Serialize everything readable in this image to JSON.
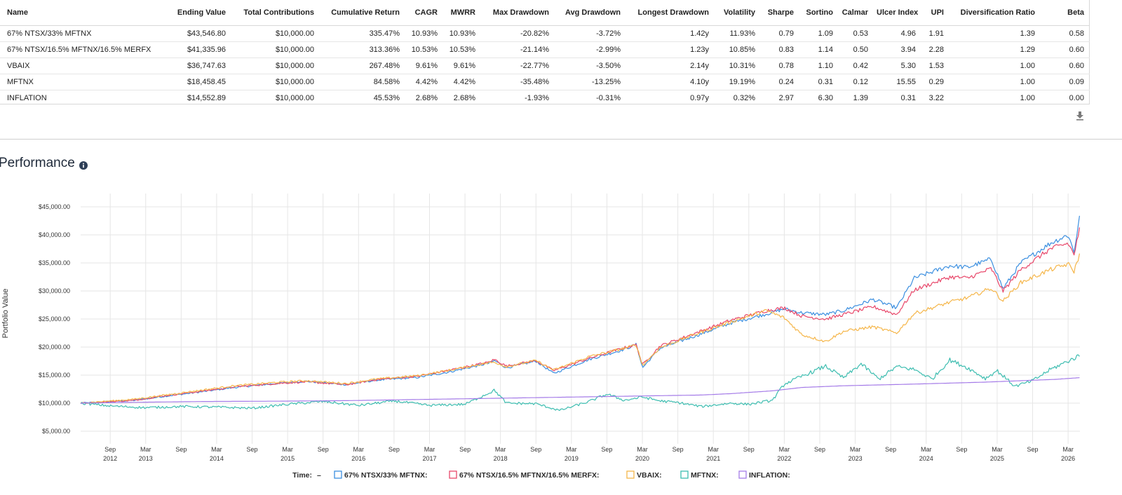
{
  "metrics": {
    "columns": [
      "Name",
      "Ending Value",
      "Total Contributions",
      "Cumulative Return",
      "CAGR",
      "MWRR",
      "Max Drawdown",
      "Avg Drawdown",
      "Longest Drawdown",
      "Volatility",
      "Sharpe",
      "Sortino",
      "Calmar",
      "Ulcer Index",
      "UPI",
      "Diversification Ratio",
      "Beta"
    ],
    "rows": [
      [
        "67% NTSX/33% MFTNX",
        "$43,546.80",
        "$10,000.00",
        "335.47%",
        "10.93%",
        "10.93%",
        "-20.82%",
        "-3.72%",
        "1.42y",
        "11.93%",
        "0.79",
        "1.09",
        "0.53",
        "4.96",
        "1.91",
        "1.39",
        "0.58"
      ],
      [
        "67% NTSX/16.5% MFTNX/16.5% MERFX",
        "$41,335.96",
        "$10,000.00",
        "313.36%",
        "10.53%",
        "10.53%",
        "-21.14%",
        "-2.99%",
        "1.23y",
        "10.85%",
        "0.83",
        "1.14",
        "0.50",
        "3.94",
        "2.28",
        "1.29",
        "0.60"
      ],
      [
        "VBAIX",
        "$36,747.63",
        "$10,000.00",
        "267.48%",
        "9.61%",
        "9.61%",
        "-22.77%",
        "-3.50%",
        "2.14y",
        "10.31%",
        "0.78",
        "1.10",
        "0.42",
        "5.30",
        "1.53",
        "1.00",
        "0.60"
      ],
      [
        "MFTNX",
        "$18,458.45",
        "$10,000.00",
        "84.58%",
        "4.42%",
        "4.42%",
        "-35.48%",
        "-13.25%",
        "4.10y",
        "19.19%",
        "0.24",
        "0.31",
        "0.12",
        "15.55",
        "0.29",
        "1.00",
        "0.09"
      ],
      [
        "INFLATION",
        "$14,552.89",
        "$10,000.00",
        "45.53%",
        "2.68%",
        "2.68%",
        "-1.93%",
        "-0.31%",
        "0.97y",
        "0.32%",
        "2.97",
        "6.30",
        "1.39",
        "0.31",
        "3.22",
        "1.00",
        "0.00"
      ]
    ]
  },
  "performance": {
    "title": "Performance",
    "info_icon": "info-circle-icon",
    "download_icon": "download-icon"
  },
  "chart_data": {
    "type": "line",
    "ylabel": "Portfolio Value",
    "xlabel": "",
    "ylim": [
      5000,
      45000
    ],
    "y_ticks": [
      "$5,000.00",
      "$10,000.00",
      "$15,000.00",
      "$20,000.00",
      "$25,000.00",
      "$30,000.00",
      "$35,000.00",
      "$40,000.00",
      "$45,000.00"
    ],
    "y_tick_values": [
      5000,
      10000,
      15000,
      20000,
      25000,
      30000,
      35000,
      40000,
      45000
    ],
    "x_range": [
      "2012-04",
      "2026-05"
    ],
    "x_ticks": [
      {
        "t": "2012-09",
        "label": "Sep",
        "year": "2012"
      },
      {
        "t": "2013-03",
        "label": "Mar",
        "year": "2013"
      },
      {
        "t": "2013-09",
        "label": "Sep",
        "year": ""
      },
      {
        "t": "2014-03",
        "label": "Mar",
        "year": "2014"
      },
      {
        "t": "2014-09",
        "label": "Sep",
        "year": ""
      },
      {
        "t": "2015-03",
        "label": "Mar",
        "year": "2015"
      },
      {
        "t": "2015-09",
        "label": "Sep",
        "year": ""
      },
      {
        "t": "2016-03",
        "label": "Mar",
        "year": "2016"
      },
      {
        "t": "2016-09",
        "label": "Sep",
        "year": ""
      },
      {
        "t": "2017-03",
        "label": "Mar",
        "year": "2017"
      },
      {
        "t": "2017-09",
        "label": "Sep",
        "year": ""
      },
      {
        "t": "2018-03",
        "label": "Mar",
        "year": "2018"
      },
      {
        "t": "2018-09",
        "label": "Sep",
        "year": ""
      },
      {
        "t": "2019-03",
        "label": "Mar",
        "year": "2019"
      },
      {
        "t": "2019-09",
        "label": "Sep",
        "year": ""
      },
      {
        "t": "2020-03",
        "label": "Mar",
        "year": "2020"
      },
      {
        "t": "2020-09",
        "label": "Sep",
        "year": ""
      },
      {
        "t": "2021-03",
        "label": "Mar",
        "year": "2021"
      },
      {
        "t": "2021-09",
        "label": "Sep",
        "year": ""
      },
      {
        "t": "2022-03",
        "label": "Mar",
        "year": "2022"
      },
      {
        "t": "2022-09",
        "label": "Sep",
        "year": ""
      },
      {
        "t": "2023-03",
        "label": "Mar",
        "year": "2023"
      },
      {
        "t": "2023-09",
        "label": "Sep",
        "year": ""
      },
      {
        "t": "2024-03",
        "label": "Mar",
        "year": "2024"
      },
      {
        "t": "2024-09",
        "label": "Sep",
        "year": ""
      },
      {
        "t": "2025-03",
        "label": "Mar",
        "year": "2025"
      },
      {
        "t": "2025-09",
        "label": "Sep",
        "year": ""
      },
      {
        "t": "2026-03",
        "label": "Mar",
        "year": "2026"
      }
    ],
    "grid": true,
    "legend": {
      "placement": "bottom",
      "prefix": "Time:",
      "prefix_value": "–"
    },
    "series": [
      {
        "name": "67% NTSX/33% MFTNX",
        "color": "#3b8fe0",
        "points": [
          [
            "2012-04",
            10000
          ],
          [
            "2013-01",
            10500
          ],
          [
            "2013-06",
            11200
          ],
          [
            "2014-01",
            12100
          ],
          [
            "2014-06",
            12800
          ],
          [
            "2015-01",
            13500
          ],
          [
            "2015-06",
            13900
          ],
          [
            "2016-01",
            13300
          ],
          [
            "2016-06",
            14100
          ],
          [
            "2017-01",
            14600
          ],
          [
            "2017-06",
            15500
          ],
          [
            "2018-01",
            17100
          ],
          [
            "2018-02",
            17600
          ],
          [
            "2018-04",
            16300
          ],
          [
            "2018-09",
            17500
          ],
          [
            "2018-12",
            15300
          ],
          [
            "2019-06",
            17800
          ],
          [
            "2019-12",
            19600
          ],
          [
            "2020-02",
            20500
          ],
          [
            "2020-03",
            16300
          ],
          [
            "2020-06",
            19800
          ],
          [
            "2020-12",
            22000
          ],
          [
            "2021-06",
            24300
          ],
          [
            "2021-12",
            25900
          ],
          [
            "2022-03",
            26800
          ],
          [
            "2022-06",
            26100
          ],
          [
            "2022-10",
            25800
          ],
          [
            "2023-01",
            26500
          ],
          [
            "2023-06",
            28500
          ],
          [
            "2023-10",
            27000
          ],
          [
            "2024-01",
            32300
          ],
          [
            "2024-07",
            34500
          ],
          [
            "2024-10",
            34200
          ],
          [
            "2025-02",
            35700
          ],
          [
            "2025-04",
            30400
          ],
          [
            "2025-07",
            35000
          ],
          [
            "2025-12",
            38500
          ],
          [
            "2026-03",
            40000
          ],
          [
            "2026-04",
            37000
          ],
          [
            "2026-05",
            43500
          ]
        ]
      },
      {
        "name": "67% NTSX/16.5% MFTNX/16.5% MERFX",
        "color": "#e8476a",
        "points": [
          [
            "2012-04",
            10000
          ],
          [
            "2013-01",
            10500
          ],
          [
            "2013-06",
            11300
          ],
          [
            "2014-01",
            12200
          ],
          [
            "2014-06",
            12900
          ],
          [
            "2015-01",
            13500
          ],
          [
            "2015-06",
            13800
          ],
          [
            "2016-01",
            13300
          ],
          [
            "2016-06",
            14200
          ],
          [
            "2017-01",
            14800
          ],
          [
            "2017-06",
            15800
          ],
          [
            "2018-01",
            17300
          ],
          [
            "2018-02",
            17800
          ],
          [
            "2018-04",
            16600
          ],
          [
            "2018-09",
            17600
          ],
          [
            "2018-12",
            15800
          ],
          [
            "2019-06",
            18000
          ],
          [
            "2019-12",
            19900
          ],
          [
            "2020-02",
            20400
          ],
          [
            "2020-03",
            16800
          ],
          [
            "2020-06",
            20200
          ],
          [
            "2020-12",
            22500
          ],
          [
            "2021-06",
            24800
          ],
          [
            "2021-12",
            26500
          ],
          [
            "2022-03",
            27000
          ],
          [
            "2022-06",
            25500
          ],
          [
            "2022-10",
            25000
          ],
          [
            "2023-01",
            25800
          ],
          [
            "2023-06",
            27200
          ],
          [
            "2023-10",
            25800
          ],
          [
            "2024-01",
            30200
          ],
          [
            "2024-07",
            32500
          ],
          [
            "2024-10",
            32300
          ],
          [
            "2025-02",
            34000
          ],
          [
            "2025-04",
            30000
          ],
          [
            "2025-07",
            33800
          ],
          [
            "2025-12",
            37500
          ],
          [
            "2026-03",
            38500
          ],
          [
            "2026-04",
            36500
          ],
          [
            "2026-05",
            41300
          ]
        ]
      },
      {
        "name": "VBAIX",
        "color": "#f5b64a",
        "points": [
          [
            "2012-04",
            10000
          ],
          [
            "2013-01",
            10700
          ],
          [
            "2013-06",
            11400
          ],
          [
            "2014-01",
            12400
          ],
          [
            "2014-06",
            13100
          ],
          [
            "2015-01",
            13700
          ],
          [
            "2015-06",
            14000
          ],
          [
            "2016-01",
            13500
          ],
          [
            "2016-06",
            14300
          ],
          [
            "2017-01",
            14900
          ],
          [
            "2017-06",
            15800
          ],
          [
            "2018-01",
            17200
          ],
          [
            "2018-02",
            17300
          ],
          [
            "2018-04",
            16500
          ],
          [
            "2018-09",
            17600
          ],
          [
            "2018-12",
            15900
          ],
          [
            "2019-06",
            18300
          ],
          [
            "2019-12",
            19800
          ],
          [
            "2020-02",
            20400
          ],
          [
            "2020-03",
            16700
          ],
          [
            "2020-06",
            19900
          ],
          [
            "2020-12",
            22300
          ],
          [
            "2021-06",
            24500
          ],
          [
            "2021-12",
            26500
          ],
          [
            "2022-03",
            25200
          ],
          [
            "2022-06",
            22200
          ],
          [
            "2022-10",
            21000
          ],
          [
            "2023-01",
            22800
          ],
          [
            "2023-06",
            23600
          ],
          [
            "2023-10",
            22500
          ],
          [
            "2024-01",
            26000
          ],
          [
            "2024-07",
            28000
          ],
          [
            "2024-10",
            28800
          ],
          [
            "2025-02",
            30500
          ],
          [
            "2025-04",
            28200
          ],
          [
            "2025-07",
            31500
          ],
          [
            "2025-12",
            33800
          ],
          [
            "2026-03",
            34800
          ],
          [
            "2026-04",
            33500
          ],
          [
            "2026-05",
            36700
          ]
        ]
      },
      {
        "name": "MFTNX",
        "color": "#3dbdb0",
        "points": [
          [
            "2012-04",
            10000
          ],
          [
            "2012-09",
            9500
          ],
          [
            "2013-03",
            9200
          ],
          [
            "2013-09",
            9400
          ],
          [
            "2014-03",
            9300
          ],
          [
            "2014-09",
            9100
          ],
          [
            "2015-03",
            9800
          ],
          [
            "2015-09",
            10300
          ],
          [
            "2016-03",
            9600
          ],
          [
            "2016-09",
            10400
          ],
          [
            "2017-03",
            9600
          ],
          [
            "2017-09",
            9800
          ],
          [
            "2018-02",
            12300
          ],
          [
            "2018-04",
            10000
          ],
          [
            "2018-09",
            9900
          ],
          [
            "2019-01",
            8700
          ],
          [
            "2019-06",
            10300
          ],
          [
            "2019-09",
            11600
          ],
          [
            "2019-12",
            10500
          ],
          [
            "2020-03",
            11100
          ],
          [
            "2020-06",
            10400
          ],
          [
            "2020-09",
            10100
          ],
          [
            "2021-01",
            9400
          ],
          [
            "2021-06",
            10000
          ],
          [
            "2021-09",
            9800
          ],
          [
            "2022-01",
            10500
          ],
          [
            "2022-03",
            13400
          ],
          [
            "2022-06",
            14800
          ],
          [
            "2022-10",
            16600
          ],
          [
            "2023-01",
            14500
          ],
          [
            "2023-04",
            17000
          ],
          [
            "2023-07",
            14300
          ],
          [
            "2023-10",
            16500
          ],
          [
            "2024-01",
            16000
          ],
          [
            "2024-04",
            14300
          ],
          [
            "2024-07",
            17700
          ],
          [
            "2024-10",
            16300
          ],
          [
            "2025-01",
            14400
          ],
          [
            "2025-03",
            15800
          ],
          [
            "2025-06",
            13000
          ],
          [
            "2025-09",
            14000
          ],
          [
            "2025-12",
            16000
          ],
          [
            "2026-03",
            17500
          ],
          [
            "2026-05",
            18500
          ]
        ]
      },
      {
        "name": "INFLATION",
        "color": "#a57ce8",
        "points": [
          [
            "2012-04",
            10000
          ],
          [
            "2013-01",
            10150
          ],
          [
            "2014-01",
            10300
          ],
          [
            "2015-01",
            10350
          ],
          [
            "2016-01",
            10450
          ],
          [
            "2017-01",
            10650
          ],
          [
            "2018-01",
            10850
          ],
          [
            "2019-01",
            11050
          ],
          [
            "2020-01",
            11250
          ],
          [
            "2021-01",
            11450
          ],
          [
            "2021-06",
            11700
          ],
          [
            "2022-01",
            12200
          ],
          [
            "2022-06",
            12800
          ],
          [
            "2023-01",
            13100
          ],
          [
            "2024-01",
            13400
          ],
          [
            "2025-01",
            13750
          ],
          [
            "2026-01",
            14250
          ],
          [
            "2026-05",
            14550
          ]
        ]
      }
    ]
  }
}
